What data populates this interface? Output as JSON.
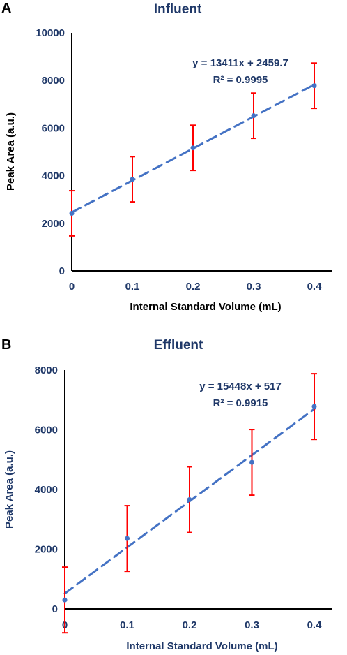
{
  "colors": {
    "title_a": "#1f3868",
    "title_b": "#1f3868",
    "ticks_a": "#1f3868",
    "ticks_b": "#1f3868",
    "axis_title_a": "#000000",
    "axis_title_b": "#1f3868",
    "equation": "#1f3868",
    "axis_line": "#000000",
    "trend": "#4472c4",
    "marker": "#4472c4",
    "error_bar": "#ff0000"
  },
  "chart_data": [
    {
      "panel": "A",
      "type": "scatter",
      "title": "Influent",
      "xlabel": "Internal Standard Volume (mL)",
      "ylabel": "Peak Area (a.u.)",
      "x_ticks": [
        "0",
        "0.1",
        "0.2",
        "0.3",
        "0.4"
      ],
      "y_ticks": [
        "0",
        "2000",
        "4000",
        "6000",
        "8000",
        "10000"
      ],
      "xlim": [
        0,
        0.4
      ],
      "ylim": [
        0,
        10000
      ],
      "grid": false,
      "series": [
        {
          "x": [
            0,
            0.1,
            0.2,
            0.3,
            0.4
          ],
          "y": [
            2420,
            3850,
            5170,
            6520,
            7780
          ],
          "error": [
            950,
            950,
            950,
            950,
            950
          ]
        }
      ],
      "trendline": {
        "type": "linear",
        "slope": 13411,
        "intercept": 2459.7,
        "style": "dashed"
      },
      "annotations": [
        "y = 13411x + 2459.7",
        "R² = 0.9995"
      ]
    },
    {
      "panel": "B",
      "type": "scatter",
      "title": "Effluent",
      "xlabel": "Internal Standard Volume (mL)",
      "ylabel": "Peak Area (a.u.)",
      "x_ticks": [
        "0",
        "0.1",
        "0.2",
        "0.3",
        "0.4"
      ],
      "y_ticks": [
        "0",
        "2000",
        "4000",
        "6000",
        "8000"
      ],
      "xlim": [
        0,
        0.4
      ],
      "ylim": [
        0,
        8000
      ],
      "grid": false,
      "series": [
        {
          "x": [
            0,
            0.1,
            0.2,
            0.3,
            0.4
          ],
          "y": [
            300,
            2360,
            3660,
            4910,
            6780
          ],
          "error": [
            1100,
            1100,
            1100,
            1100,
            1100
          ]
        }
      ],
      "trendline": {
        "type": "linear",
        "slope": 15448,
        "intercept": 517,
        "style": "dashed"
      },
      "annotations": [
        "y = 15448x + 517",
        "R² = 0.9915"
      ]
    }
  ]
}
